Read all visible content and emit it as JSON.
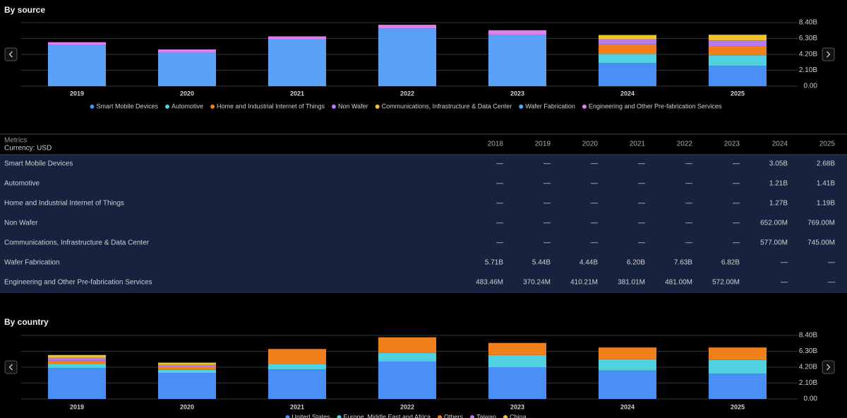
{
  "chart_data": [
    {
      "type": "bar",
      "stacked": true,
      "title": "By source",
      "categories": [
        "2019",
        "2020",
        "2021",
        "2022",
        "2023",
        "2024",
        "2025"
      ],
      "series": [
        {
          "name": "Smart Mobile Devices",
          "color": "#4a8ff5",
          "values": [
            null,
            null,
            null,
            null,
            null,
            3.05,
            2.68
          ]
        },
        {
          "name": "Automotive",
          "color": "#4fd1e0",
          "values": [
            null,
            null,
            null,
            null,
            null,
            1.21,
            1.41
          ]
        },
        {
          "name": "Home and Industrial Internet of Things",
          "color": "#f07f1c",
          "values": [
            null,
            null,
            null,
            null,
            null,
            1.27,
            1.19
          ]
        },
        {
          "name": "Non Wafer",
          "color": "#b47cf0",
          "values": [
            null,
            null,
            null,
            null,
            null,
            0.652,
            0.769
          ]
        },
        {
          "name": "Communications, Infrastructure & Data Center",
          "color": "#f2c12e",
          "values": [
            null,
            null,
            null,
            null,
            null,
            0.577,
            0.745
          ]
        },
        {
          "name": "Wafer Fabrication",
          "color": "#5aa2f8",
          "values": [
            5.44,
            4.44,
            6.2,
            7.63,
            6.82,
            null,
            null
          ]
        },
        {
          "name": "Engineering and Other Pre-fabrication Services",
          "color": "#e07ff0",
          "values": [
            0.37024,
            0.41021,
            0.38101,
            0.481,
            0.572,
            null,
            null
          ]
        }
      ],
      "ylim": [
        0,
        8.4
      ],
      "yticks": [
        {
          "value": 0,
          "label": "0.00"
        },
        {
          "value": 2.1,
          "label": "2.10B"
        },
        {
          "value": 4.2,
          "label": "4.20B"
        },
        {
          "value": 6.3,
          "label": "6.30B"
        },
        {
          "value": 8.4,
          "label": "8.40B"
        }
      ],
      "grid": true,
      "legend": "bottom"
    },
    {
      "type": "bar",
      "stacked": true,
      "title": "By country",
      "categories": [
        "2019",
        "2020",
        "2021",
        "2022",
        "2023",
        "2024",
        "2025"
      ],
      "series": [
        {
          "name": "United States",
          "color": "#4a8ff5",
          "values": [
            4.1,
            3.45,
            3.9,
            4.95,
            4.2,
            3.75,
            3.35
          ]
        },
        {
          "name": "Europe, Middle East and Africa",
          "color": "#4fd1e0",
          "values": [
            0.56,
            0.4,
            0.75,
            1.15,
            1.6,
            1.5,
            1.8
          ]
        },
        {
          "name": "Others",
          "color": "#f07f1c",
          "values": [
            0.4,
            0.35,
            1.95,
            2.05,
            1.6,
            1.55,
            1.65
          ]
        },
        {
          "name": "Taiwan",
          "color": "#b47cf0",
          "values": [
            0.38,
            0.3,
            null,
            null,
            null,
            null,
            null
          ]
        },
        {
          "name": "China",
          "color": "#f2c12e",
          "values": [
            0.37,
            0.3,
            null,
            null,
            null,
            null,
            null
          ]
        }
      ],
      "ylim": [
        0,
        8.4
      ],
      "yticks": [
        {
          "value": 0,
          "label": "0.00"
        },
        {
          "value": 2.1,
          "label": "2.10B"
        },
        {
          "value": 4.2,
          "label": "4.20B"
        },
        {
          "value": 6.3,
          "label": "6.30B"
        },
        {
          "value": 8.4,
          "label": "8.40B"
        }
      ],
      "grid": true,
      "legend": "bottom"
    }
  ],
  "table": {
    "title": "Metrics",
    "currency": "Currency: USD",
    "columns": [
      "2018",
      "2019",
      "2020",
      "2021",
      "2022",
      "2023",
      "2024",
      "2025"
    ],
    "rows": [
      {
        "label": "Smart Mobile Devices",
        "cells": [
          "—",
          "—",
          "—",
          "—",
          "—",
          "—",
          "3.05B",
          "2.68B"
        ]
      },
      {
        "label": "Automotive",
        "cells": [
          "—",
          "—",
          "—",
          "—",
          "—",
          "—",
          "1.21B",
          "1.41B"
        ]
      },
      {
        "label": "Home and Industrial Internet of Things",
        "cells": [
          "—",
          "—",
          "—",
          "—",
          "—",
          "—",
          "1.27B",
          "1.19B"
        ]
      },
      {
        "label": "Non Wafer",
        "cells": [
          "—",
          "—",
          "—",
          "—",
          "—",
          "—",
          "652.00M",
          "769.00M"
        ]
      },
      {
        "label": "Communications, Infrastructure & Data Center",
        "cells": [
          "—",
          "—",
          "—",
          "—",
          "—",
          "—",
          "577.00M",
          "745.00M"
        ]
      },
      {
        "label": "Wafer Fabrication",
        "cells": [
          "5.71B",
          "5.44B",
          "4.44B",
          "6.20B",
          "7.63B",
          "6.82B",
          "—",
          "—"
        ]
      },
      {
        "label": "Engineering and Other Pre-fabrication Services",
        "cells": [
          "483.46M",
          "370.24M",
          "410.21M",
          "381.01M",
          "481.00M",
          "572.00M",
          "—",
          "—"
        ]
      }
    ]
  }
}
